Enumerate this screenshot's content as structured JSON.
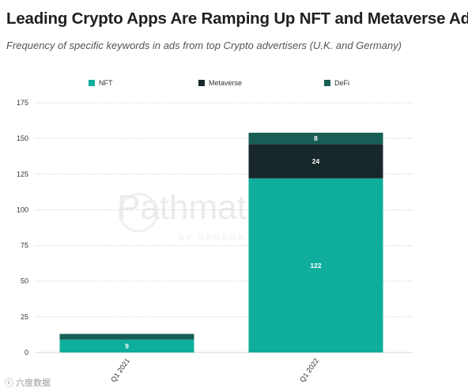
{
  "header": {
    "title": "Leading Crypto Apps Are Ramping Up NFT and Metaverse Ads",
    "subtitle": "Frequency of specific keywords in ads from top Crypto advertisers (U.K. and Germany)"
  },
  "watermark": {
    "brand": "Pathmatics",
    "tagline": "BY SENSOR TOWER"
  },
  "source_mark": "ⓒ 六度数据",
  "colors": {
    "NFT": "#0fae9c",
    "Metaverse": "#18272a",
    "DeFi": "#175f56",
    "grid": "#d7d7d7"
  },
  "chart_data": {
    "type": "bar",
    "stacked": true,
    "categories": [
      "Q1 2021",
      "Q1 2022"
    ],
    "series": [
      {
        "name": "NFT",
        "values": [
          9,
          122
        ]
      },
      {
        "name": "Metaverse",
        "values": [
          0,
          24
        ]
      },
      {
        "name": "DeFi",
        "values": [
          4,
          8
        ]
      }
    ],
    "data_labels": [
      [
        "9",
        "",
        ""
      ],
      [
        "122",
        "24",
        "8"
      ]
    ],
    "title": "Leading Crypto Apps Are Ramping Up NFT and Metaverse Ads",
    "subtitle": "Frequency of specific keywords in ads from top Crypto advertisers (U.K. and Germany)",
    "xlabel": "",
    "ylabel": "",
    "ylim": [
      0,
      175
    ],
    "yticks": [
      0,
      25,
      50,
      75,
      100,
      125,
      150,
      175
    ],
    "grid": true,
    "legend_position": "top"
  }
}
